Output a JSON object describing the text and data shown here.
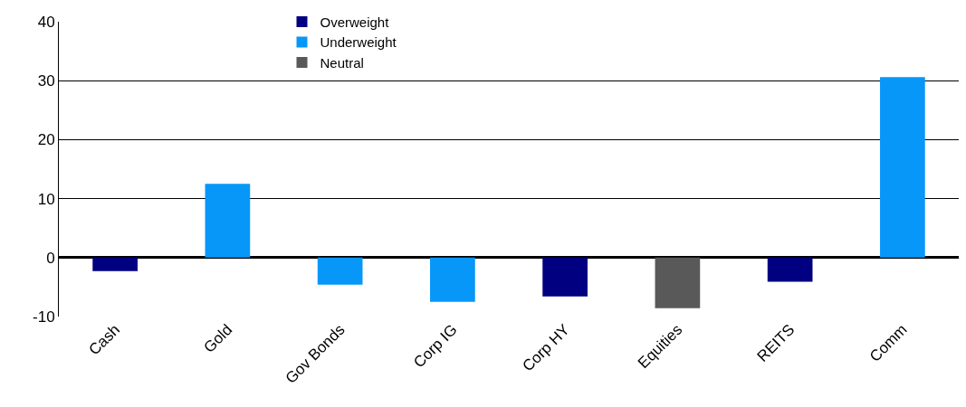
{
  "chart_data": {
    "type": "bar",
    "categories": [
      "Cash",
      "Gold",
      "Gov Bonds",
      "Corp IG",
      "Corp HY",
      "Equities",
      "REITS",
      "Comm"
    ],
    "series": [
      {
        "name": "Overweight",
        "color": "#000080",
        "values": [
          -2.3,
          null,
          null,
          null,
          -6.6,
          null,
          -4.1,
          null
        ]
      },
      {
        "name": "Underweight",
        "color": "#0797f9",
        "values": [
          null,
          12.5,
          -4.6,
          -7.5,
          null,
          null,
          null,
          30.6
        ]
      },
      {
        "name": "Neutral",
        "color": "#595959",
        "values": [
          null,
          null,
          null,
          null,
          null,
          -8.6,
          null,
          null
        ]
      }
    ],
    "ylim": [
      -10,
      40
    ],
    "yticks": [
      -10,
      0,
      10,
      20,
      30,
      40
    ],
    "grid": "y",
    "legend": "top left"
  }
}
